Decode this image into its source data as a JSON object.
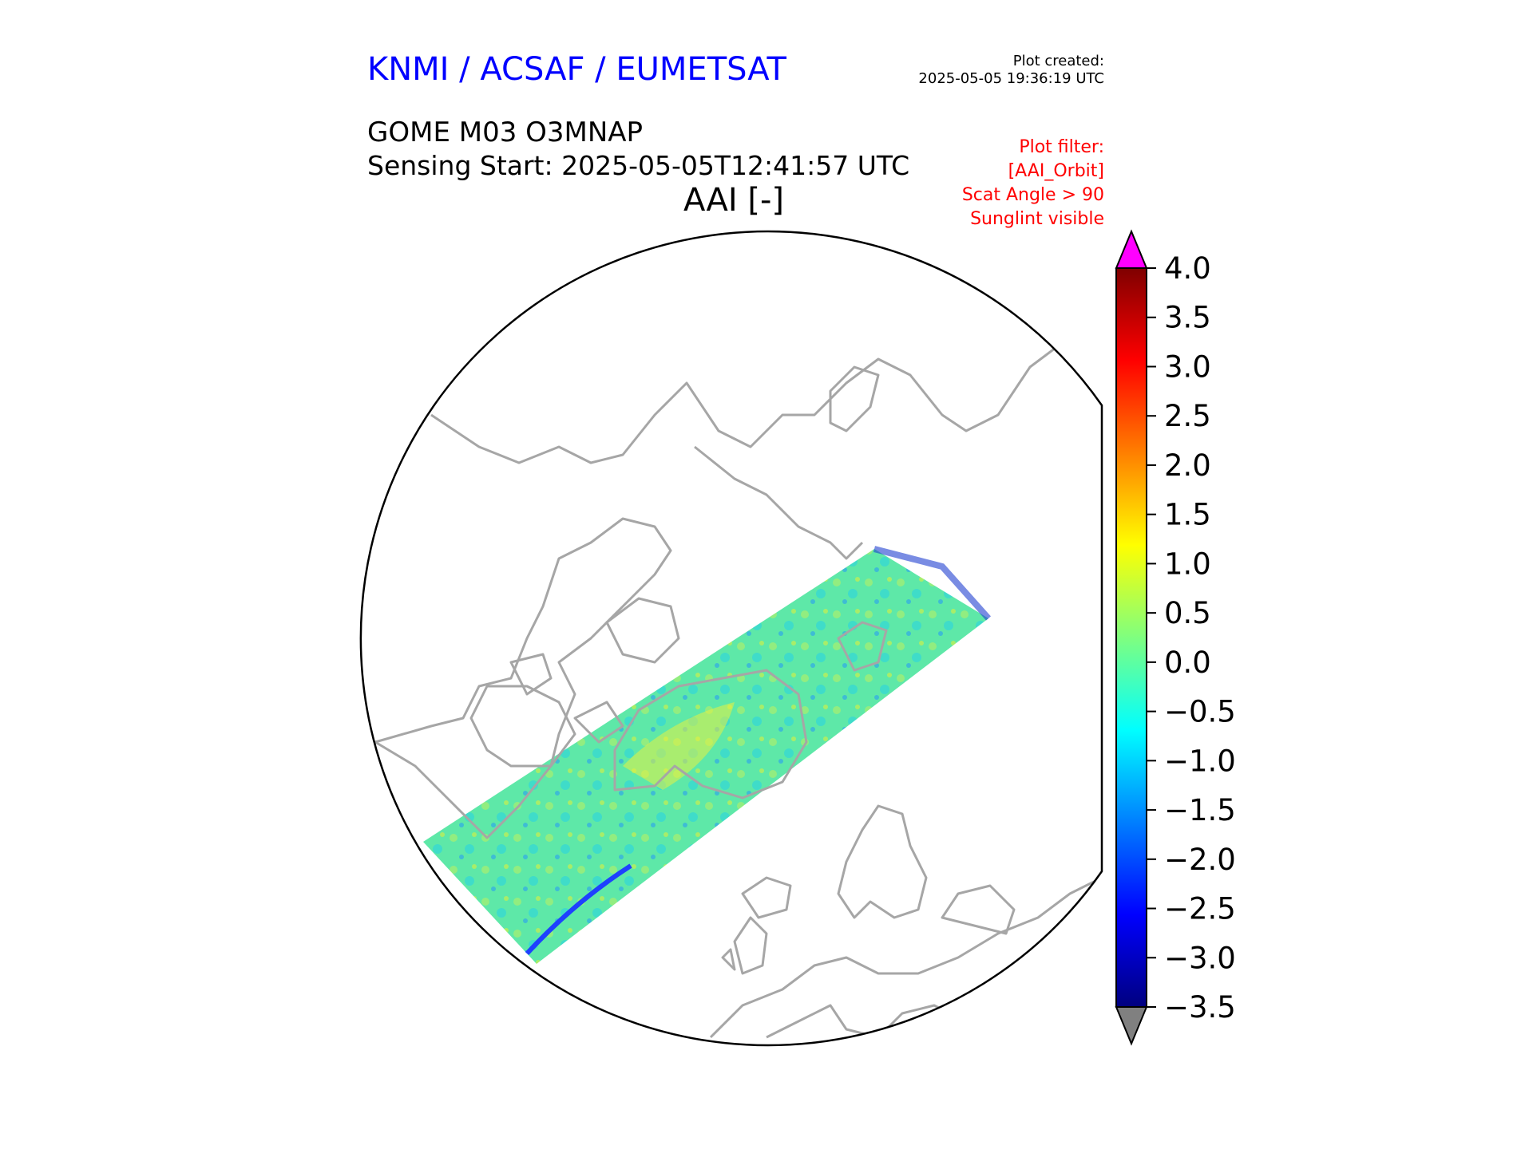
{
  "header": {
    "organization": "KNMI / ACSAF / EUMETSAT",
    "plot_created_label": "Plot created:",
    "plot_created_time": "2025-05-05 19:36:19 UTC",
    "product": "GOME M03 O3MNAP",
    "sensing_start": "Sensing Start: 2025-05-05T12:41:57 UTC",
    "parameter": "AAI [-]"
  },
  "filters": {
    "title": "Plot filter:",
    "items": [
      "[AAI_Orbit]",
      "Scat Angle > 90",
      "Sunglint visible"
    ]
  },
  "colorbar": {
    "min": -3.5,
    "max": 4.0,
    "ticks": [
      "4.0",
      "3.5",
      "3.0",
      "2.5",
      "2.0",
      "1.5",
      "1.0",
      "0.5",
      "0.0",
      "−0.5",
      "−1.0",
      "−1.5",
      "−2.0",
      "−2.5",
      "−3.0",
      "−3.5"
    ],
    "over_color": "#ff00ff",
    "under_color": "#808080",
    "colormap": [
      "#00007f",
      "#0000ff",
      "#007fff",
      "#00ffff",
      "#7fff7f",
      "#ffff00",
      "#ff7f00",
      "#ff0000",
      "#7f0000"
    ]
  },
  "colors": {
    "coastline": "#a6a6a6",
    "frame": "#000000",
    "swath_base": "#5ee8a8"
  }
}
